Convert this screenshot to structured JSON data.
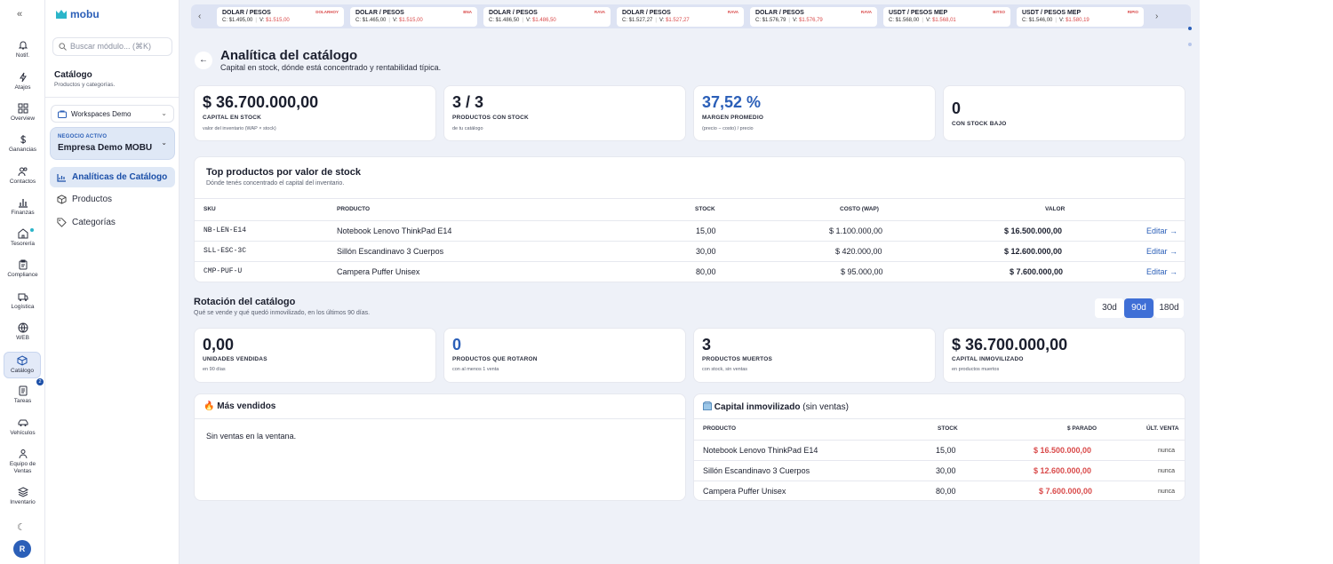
{
  "rail": {
    "items": [
      {
        "label": "Notif.",
        "icon": "bell-icon"
      },
      {
        "label": "Atajos",
        "icon": "lightning-icon"
      },
      {
        "label": "Overview",
        "icon": "grid-icon"
      },
      {
        "label": "Ganancias",
        "icon": "dollar-icon"
      },
      {
        "label": "Contactos",
        "icon": "users-icon"
      },
      {
        "label": "Finanzas",
        "icon": "bar-chart-icon"
      },
      {
        "label": "Tesorería",
        "icon": "bank-icon"
      },
      {
        "label": "Compliance",
        "icon": "clipboard-icon"
      },
      {
        "label": "Logística",
        "icon": "box-icon"
      },
      {
        "label": "WEB",
        "icon": "globe-icon"
      },
      {
        "label": "Catálogo",
        "icon": "cube-icon"
      },
      {
        "label": "Tareas",
        "icon": "list-icon"
      },
      {
        "label": "Vehículos",
        "icon": "car-icon"
      },
      {
        "label": "Equipo de Ventas",
        "icon": "team-icon"
      },
      {
        "label": "Inventario",
        "icon": "layers-icon"
      }
    ],
    "tasks_badge": "2",
    "avatar_initial": "R"
  },
  "side": {
    "logo": "mobu",
    "search_placeholder": "Buscar módulo... (⌘K)",
    "title": "Catálogo",
    "subtitle": "Productos y categorías.",
    "workspace": "Workspaces Demo",
    "business_label": "NEGOCIO ACTIVO",
    "business_name": "Empresa Demo MOBU",
    "nav": [
      "Analíticas de Catálogo",
      "Productos",
      "Categorías"
    ]
  },
  "tickers": [
    {
      "pair": "DOLAR / PESOS",
      "src": "DOLARHOY",
      "c": "$1.495,00",
      "v": "$1.515,00"
    },
    {
      "pair": "DOLAR / PESOS",
      "src": "BNA",
      "c": "$1.465,00",
      "v": "$1.515,00"
    },
    {
      "pair": "DOLAR / PESOS",
      "src": "RAVA",
      "c": "$1.486,50",
      "v": "$1.486,50"
    },
    {
      "pair": "DOLAR / PESOS",
      "src": "RAVA",
      "c": "$1.527,27",
      "v": "$1.527,27"
    },
    {
      "pair": "DOLAR / PESOS",
      "src": "RAVA",
      "c": "$1.576,79",
      "v": "$1.576,79"
    },
    {
      "pair": "USDT / PESOS MEP",
      "src": "BITSO",
      "c": "$1.568,00",
      "v": "$1.568,01"
    },
    {
      "pair": "USDT / PESOS MEP",
      "src": "RIPIO",
      "c": "$1.546,00",
      "v": "$1.580,19"
    }
  ],
  "header": {
    "title": "Analítica del catálogo",
    "subtitle": "Capital en stock, dónde está concentrado y rentabilidad típica."
  },
  "kpis": [
    {
      "value": "$ 36.700.000,00",
      "label": "CAPITAL EN STOCK",
      "note": "valor del inventario (WAP × stock)"
    },
    {
      "value": "3 / 3",
      "label": "PRODUCTOS CON STOCK",
      "note": "de tu catálogo"
    },
    {
      "value": "37,52 %",
      "label": "MARGEN PROMEDIO",
      "note": "(precio − costo) / precio"
    },
    {
      "value": "0",
      "label": "CON STOCK BAJO",
      "note": ""
    }
  ],
  "top": {
    "title": "Top productos por valor de stock",
    "subtitle": "Dónde tenés concentrado el capital del inventario.",
    "headers": [
      "SKU",
      "PRODUCTO",
      "STOCK",
      "COSTO (WAP)",
      "VALOR"
    ],
    "rows": [
      {
        "sku": "NB-LEN-E14",
        "product": "Notebook Lenovo ThinkPad E14",
        "stock": "15,00",
        "cost": "$ 1.100.000,00",
        "value": "$ 16.500.000,00",
        "action": "Editar →"
      },
      {
        "sku": "SLL-ESC-3C",
        "product": "Sillón Escandinavo 3 Cuerpos",
        "stock": "30,00",
        "cost": "$ 420.000,00",
        "value": "$ 12.600.000,00",
        "action": "Editar →"
      },
      {
        "sku": "CMP-PUF-U",
        "product": "Campera Puffer Unisex",
        "stock": "80,00",
        "cost": "$ 95.000,00",
        "value": "$ 7.600.000,00",
        "action": "Editar →"
      }
    ]
  },
  "rotation": {
    "title": "Rotación del catálogo",
    "subtitle": "Qué se vende y qué quedó inmovilizado, en los últimos 90 días.",
    "periods": [
      "30d",
      "90d",
      "180d"
    ],
    "selected": "90d",
    "kpis": [
      {
        "value": "0,00",
        "label": "UNIDADES VENDIDAS",
        "note": "en 90 días"
      },
      {
        "value": "0",
        "label": "PRODUCTOS QUE ROTARON",
        "note": "con al menos 1 venta"
      },
      {
        "value": "3",
        "label": "PRODUCTOS MUERTOS",
        "note": "con stock, sin ventas"
      },
      {
        "value": "$ 36.700.000,00",
        "label": "CAPITAL INMOVILIZADO",
        "note": "en productos muertos"
      }
    ]
  },
  "bestsellers": {
    "icon": "fire-icon",
    "title": "Más vendidos",
    "empty": "Sin ventas en la ventana."
  },
  "stuck": {
    "icon": "package-icon",
    "title": "Capital inmovilizado",
    "title_suffix": "(sin ventas)",
    "headers": [
      "PRODUCTO",
      "STOCK",
      "$ PARADO",
      "ÚLT. VENTA"
    ],
    "rows": [
      {
        "product": "Notebook Lenovo ThinkPad E14",
        "stock": "15,00",
        "amount": "$ 16.500.000,00",
        "last": "nunca"
      },
      {
        "product": "Sillón Escandinavo 3 Cuerpos",
        "stock": "30,00",
        "amount": "$ 12.600.000,00",
        "last": "nunca"
      },
      {
        "product": "Campera Puffer Unisex",
        "stock": "80,00",
        "amount": "$ 7.600.000,00",
        "last": "nunca"
      }
    ]
  },
  "colors": {
    "accent": "#2b5fb8",
    "danger": "#d94a4a",
    "background": "#eef1f8"
  }
}
